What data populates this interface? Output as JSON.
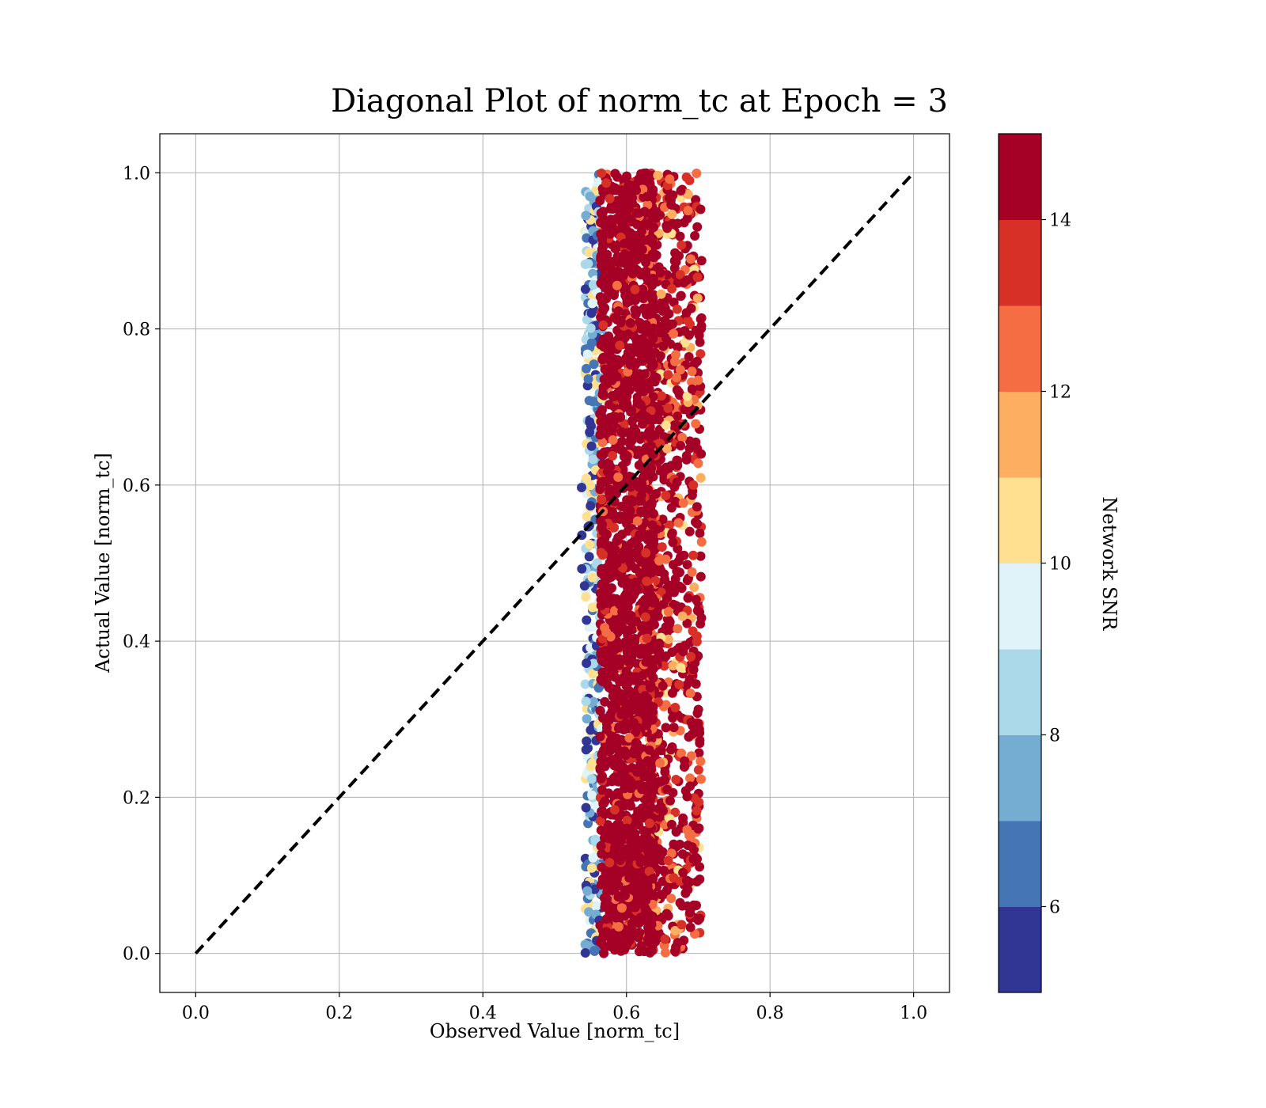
{
  "chart_data": {
    "type": "scatter",
    "title": "Diagonal Plot of norm_tc at Epoch = 3",
    "xlabel": "Observed Value [norm_tc]",
    "ylabel": "Actual Value [norm_tc]",
    "xlim": [
      -0.05,
      1.05
    ],
    "ylim": [
      -0.05,
      1.05
    ],
    "xticks": [
      "0.0",
      "0.2",
      "0.4",
      "0.6",
      "0.8",
      "1.0"
    ],
    "yticks": [
      "0.0",
      "0.2",
      "0.4",
      "0.6",
      "0.8",
      "1.0"
    ],
    "grid": true,
    "reference_line": {
      "style": "dashed",
      "color": "#000000",
      "from": [
        0,
        0
      ],
      "to": [
        1,
        1
      ]
    },
    "point_cluster": {
      "x_center": 0.6,
      "x_core_range": [
        0.555,
        0.63
      ],
      "x_full_range": [
        0.535,
        0.715
      ],
      "y_range": [
        0,
        1
      ]
    },
    "colorbar": {
      "label": "Network SNR",
      "range": [
        5,
        15
      ],
      "ticks": [
        "6",
        "8",
        "10",
        "12",
        "14"
      ],
      "tick_values": [
        6,
        8,
        10,
        12,
        14
      ],
      "colors": [
        "#313695",
        "#4575b4",
        "#74add1",
        "#abd9e9",
        "#e0f3f8",
        "#fee090",
        "#fdae61",
        "#f46d43",
        "#d73027",
        "#a50026"
      ]
    }
  }
}
